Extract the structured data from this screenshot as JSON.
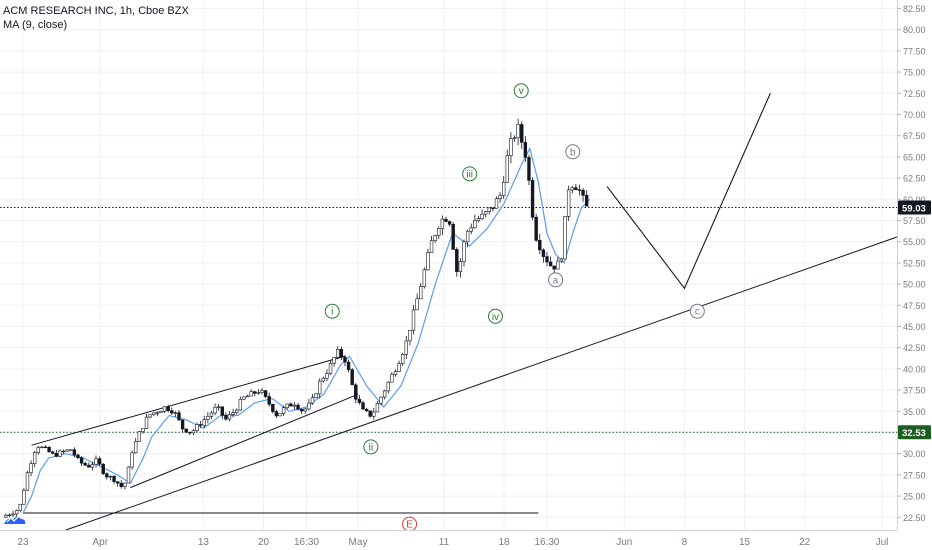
{
  "legend": {
    "title": "ACM RESEARCH INC, 1h, Cboe BZX",
    "indicator": "MA (9, close)"
  },
  "colors": {
    "candle": "#131722",
    "ma": "#5b9cf6",
    "wave_green": "#2e7d32",
    "wave_gray": "#787b86",
    "wave_red": "#e53935",
    "price_tag": "#131722",
    "grid": "#eef0f3",
    "axis_text": "#787b86"
  },
  "chart_data": {
    "type": "candlestick",
    "y_axis": {
      "min": 21,
      "max": 83.5,
      "ticks": [
        "22.50",
        "25.00",
        "27.50",
        "30.00",
        "32.50",
        "35.00",
        "37.50",
        "40.00",
        "42.50",
        "45.00",
        "47.50",
        "50.00",
        "52.50",
        "55.00",
        "57.50",
        "60.00",
        "62.50",
        "65.00",
        "67.50",
        "70.00",
        "72.50",
        "75.00",
        "77.50",
        "80.00",
        "82.50"
      ]
    },
    "x_axis": {
      "start": "Mar 23",
      "end": "Jul 3",
      "ticks": [
        {
          "label": "23",
          "day": 0
        },
        {
          "label": "Apr",
          "day": 9
        },
        {
          "label": "13",
          "day": 21
        },
        {
          "label": "20",
          "day": 28
        },
        {
          "label": "16:30",
          "day": 33
        },
        {
          "label": "May",
          "day": 39
        },
        {
          "label": "11",
          "day": 49
        },
        {
          "label": "18",
          "day": 56
        },
        {
          "label": "16:30",
          "day": 61
        },
        {
          "label": "Jun",
          "day": 70
        },
        {
          "label": "8",
          "day": 77
        },
        {
          "label": "15",
          "day": 84
        },
        {
          "label": "22",
          "day": 91
        },
        {
          "label": "Jul",
          "day": 100
        }
      ]
    },
    "price_path": [
      [
        -2,
        22.5
      ],
      [
        0,
        23.5
      ],
      [
        1,
        28
      ],
      [
        2,
        31
      ],
      [
        3,
        30.5
      ],
      [
        4,
        29.8
      ],
      [
        5,
        30.2
      ],
      [
        6,
        30.5
      ],
      [
        7,
        29
      ],
      [
        8,
        28.5
      ],
      [
        9,
        29.2
      ],
      [
        10,
        27.5
      ],
      [
        11,
        27
      ],
      [
        12,
        26
      ],
      [
        12.5,
        27
      ],
      [
        13,
        30
      ],
      [
        14,
        32.5
      ],
      [
        15,
        34.5
      ],
      [
        16,
        35
      ],
      [
        17,
        35.5
      ],
      [
        18,
        35
      ],
      [
        19,
        33
      ],
      [
        20,
        32.5
      ],
      [
        21,
        33.5
      ],
      [
        22,
        34.5
      ],
      [
        23,
        35.5
      ],
      [
        24,
        34
      ],
      [
        25,
        35
      ],
      [
        26,
        36.5
      ],
      [
        27,
        37
      ],
      [
        28,
        37.5
      ],
      [
        29,
        36
      ],
      [
        30,
        34.5
      ],
      [
        31,
        35.5
      ],
      [
        32,
        36
      ],
      [
        33,
        35
      ],
      [
        34,
        36
      ],
      [
        35,
        38.5
      ],
      [
        36,
        40
      ],
      [
        37,
        42
      ],
      [
        38,
        41
      ],
      [
        39,
        37
      ],
      [
        40,
        35
      ],
      [
        41,
        34.5
      ],
      [
        42,
        36.5
      ],
      [
        43,
        38.5
      ],
      [
        44,
        40.5
      ],
      [
        45,
        43
      ],
      [
        46,
        47
      ],
      [
        47,
        51
      ],
      [
        48,
        55
      ],
      [
        49,
        57.5
      ],
      [
        50,
        58
      ],
      [
        51,
        51
      ],
      [
        52,
        56
      ],
      [
        53,
        57.5
      ],
      [
        54,
        58
      ],
      [
        55,
        59
      ],
      [
        56,
        60.5
      ],
      [
        57,
        66
      ],
      [
        58,
        68.5
      ],
      [
        59,
        65
      ],
      [
        60,
        56
      ],
      [
        61,
        53.5
      ],
      [
        62,
        52
      ],
      [
        63,
        52.5
      ],
      [
        64,
        62
      ],
      [
        65,
        61.5
      ],
      [
        66,
        59
      ]
    ],
    "ma_path": [
      [
        0,
        23
      ],
      [
        1,
        25
      ],
      [
        2,
        28
      ],
      [
        3,
        29.5
      ],
      [
        5,
        30
      ],
      [
        7,
        29.5
      ],
      [
        9,
        28.5
      ],
      [
        11,
        27.5
      ],
      [
        12.5,
        26.5
      ],
      [
        14,
        29.5
      ],
      [
        15,
        32
      ],
      [
        17,
        34.5
      ],
      [
        19,
        34
      ],
      [
        21,
        33
      ],
      [
        23,
        34.5
      ],
      [
        25,
        34.5
      ],
      [
        27,
        36
      ],
      [
        29,
        36.5
      ],
      [
        31,
        35
      ],
      [
        33,
        35.5
      ],
      [
        35,
        37
      ],
      [
        37,
        40.5
      ],
      [
        38,
        41.5
      ],
      [
        40,
        38
      ],
      [
        42,
        35.5
      ],
      [
        44,
        38
      ],
      [
        46,
        43
      ],
      [
        48,
        50
      ],
      [
        50,
        56
      ],
      [
        52,
        54.5
      ],
      [
        54,
        56.5
      ],
      [
        56,
        59.5
      ],
      [
        58,
        64
      ],
      [
        59,
        66
      ],
      [
        60,
        62
      ],
      [
        61,
        56
      ],
      [
        62,
        53.5
      ],
      [
        63,
        52.5
      ],
      [
        64,
        56
      ],
      [
        65,
        59
      ],
      [
        66,
        60
      ]
    ],
    "trendlines": [
      {
        "from": [
          1,
          31
        ],
        "to": [
          37.5,
          41.5
        ]
      },
      {
        "from": [
          12.5,
          26
        ],
        "to": [
          39,
          37
        ]
      },
      {
        "from": [
          5,
          21
        ],
        "to": [
          110,
          58.5
        ]
      },
      {
        "from": [
          0,
          23
        ],
        "to": [
          60,
          23
        ]
      }
    ],
    "projection": [
      [
        68,
        61.5
      ],
      [
        77,
        49.5
      ],
      [
        87,
        72.5
      ]
    ],
    "horizontal_lines": [
      {
        "value": 59.03,
        "label": "59.03",
        "style": "dotted"
      },
      {
        "value": 32.53,
        "label": "32.53",
        "style": "dotted-green"
      }
    ],
    "wave_labels": [
      {
        "text": "i",
        "day": 36,
        "price": 46.8,
        "color": "green"
      },
      {
        "text": "ii",
        "day": 40.5,
        "price": 30.8,
        "color": "green"
      },
      {
        "text": "iii",
        "day": 52,
        "price": 63,
        "color": "green"
      },
      {
        "text": "iv",
        "day": 55,
        "price": 46.2,
        "color": "green"
      },
      {
        "text": "v",
        "day": 58,
        "price": 72.8,
        "color": "green"
      },
      {
        "text": "b",
        "day": 64,
        "price": 65.6,
        "color": "gray"
      },
      {
        "text": "a",
        "day": 62,
        "price": 50.5,
        "color": "gray"
      },
      {
        "text": "c",
        "day": 78.5,
        "price": 46.8,
        "color": "gray"
      },
      {
        "text": "E",
        "day": 45,
        "price": 21.7,
        "color": "red"
      }
    ]
  }
}
